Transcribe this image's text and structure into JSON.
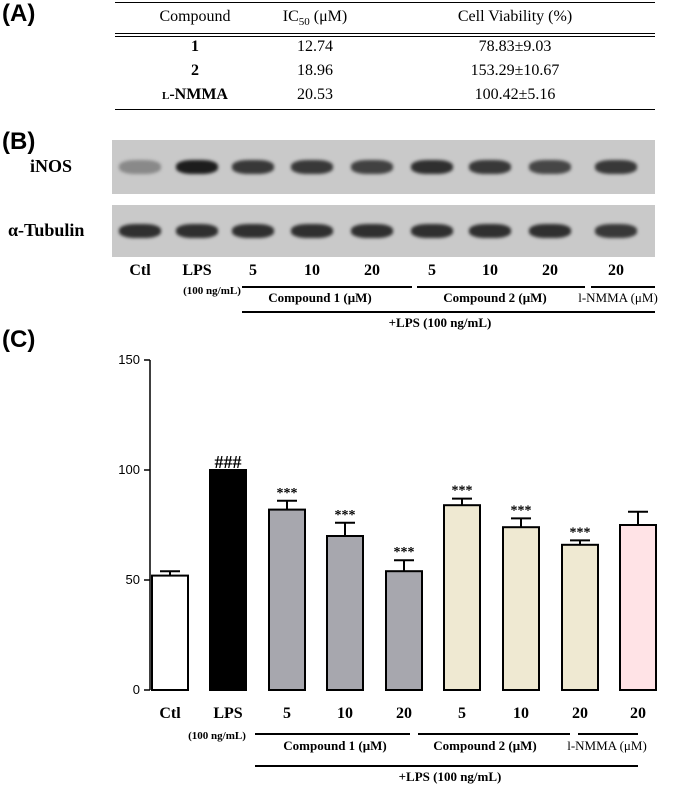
{
  "panel_a": {
    "letter": "(A)",
    "headers": {
      "compound": "Compound",
      "ic50_main": "IC",
      "ic50_sub": "50",
      "ic50_unit": "(μM)",
      "viability": "Cell Viability  (%)"
    },
    "rows": [
      {
        "compound": "1",
        "ic50": "12.74",
        "viability": "78.83±9.03"
      },
      {
        "compound": "2",
        "ic50": "18.96",
        "viability": "153.29±10.67"
      },
      {
        "compound": "l-NMMA",
        "ic50": "20.53",
        "viability": "100.42±5.16"
      }
    ]
  },
  "panel_b": {
    "letter": "(B)",
    "row_labels": {
      "inos": "iNOS",
      "tubulin": "α-Tubulin"
    },
    "lanes": [
      "Ctl",
      "LPS",
      "5",
      "10",
      "20",
      "5",
      "10",
      "20",
      "20"
    ],
    "inos_intensity": [
      0.35,
      0.95,
      0.8,
      0.8,
      0.75,
      0.85,
      0.8,
      0.72,
      0.8
    ],
    "tubulin_intensity": [
      0.85,
      0.85,
      0.85,
      0.85,
      0.85,
      0.85,
      0.85,
      0.85,
      0.8
    ],
    "lps_conc": "(100 ng/mL)",
    "groups": [
      "Compound 1 (μM)",
      "Compound 2 (μM)",
      "l-NMMA (μM)"
    ],
    "overall": "+LPS (100 ng/mL)"
  },
  "panel_c": {
    "letter": "(C)",
    "lps_conc": "(100 ng/mL)",
    "groups": [
      "Compound 1 (μM)",
      "Compound 2 (μM)",
      "l-NMMA (μM)"
    ],
    "overall": "+LPS (100 ng/mL)"
  },
  "chart_data": {
    "type": "bar",
    "categories": [
      "Ctl",
      "LPS",
      "5",
      "10",
      "20",
      "5",
      "10",
      "20",
      "20"
    ],
    "values": [
      52,
      100,
      82,
      70,
      54,
      84,
      74,
      66,
      75
    ],
    "errors": [
      2,
      0,
      4,
      6,
      5,
      3,
      4,
      2,
      6
    ],
    "annotations": [
      "",
      "###",
      "***",
      "***",
      "***",
      "***",
      "***",
      "***",
      ""
    ],
    "colors": [
      "#ffffff",
      "#000000",
      "#a7a7ae",
      "#a7a7ae",
      "#a7a7ae",
      "#efe9d2",
      "#efe9d2",
      "#efe9d2",
      "#ffe3e6"
    ],
    "ylim": [
      0,
      150
    ],
    "yticks": [
      0,
      50,
      100,
      150
    ],
    "xlabel": "",
    "ylabel": ""
  }
}
